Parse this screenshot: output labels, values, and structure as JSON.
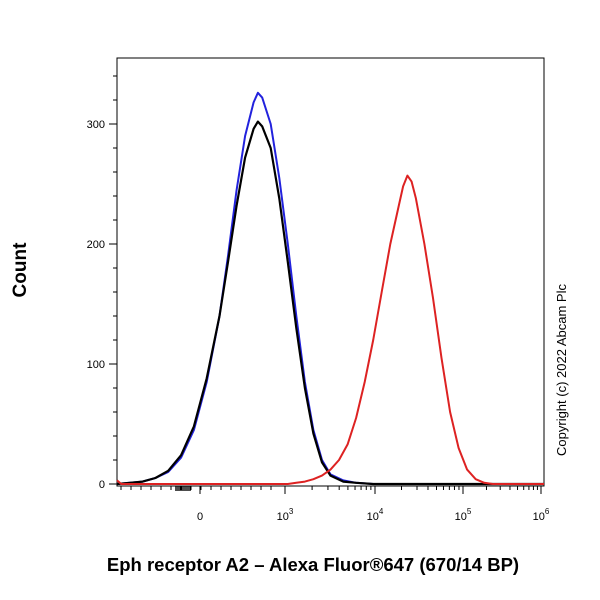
{
  "chart_data": {
    "type": "line",
    "title": "",
    "xlabel": "Eph receptor A2 – Alexa Fluor®647 (670/14 BP)",
    "ylabel": "Count",
    "ylim": [
      0,
      355
    ],
    "y_ticks": [
      {
        "value": 0,
        "label": "0"
      },
      {
        "value": 100,
        "label": "100"
      },
      {
        "value": 200,
        "label": "200"
      },
      {
        "value": 300,
        "label": "300"
      }
    ],
    "x_scale": "biexponential",
    "x_ticks": [
      {
        "base": "0",
        "exp": ""
      },
      {
        "base": "10",
        "exp": "3"
      },
      {
        "base": "10",
        "exp": "4"
      },
      {
        "base": "10",
        "exp": "5"
      },
      {
        "base": "10",
        "exp": "6"
      }
    ],
    "grid": false,
    "legend": "none",
    "series": [
      {
        "color": "#2222dd",
        "peak": {
          "x": "~100",
          "y": 325
        },
        "points": [
          [
            0.0,
            0
          ],
          [
            0.03,
            1
          ],
          [
            0.06,
            2
          ],
          [
            0.09,
            5
          ],
          [
            0.12,
            10
          ],
          [
            0.15,
            22
          ],
          [
            0.18,
            45
          ],
          [
            0.21,
            85
          ],
          [
            0.24,
            140
          ],
          [
            0.26,
            190
          ],
          [
            0.28,
            245
          ],
          [
            0.3,
            290
          ],
          [
            0.32,
            318
          ],
          [
            0.33,
            326
          ],
          [
            0.34,
            322
          ],
          [
            0.36,
            300
          ],
          [
            0.38,
            255
          ],
          [
            0.4,
            200
          ],
          [
            0.42,
            140
          ],
          [
            0.44,
            85
          ],
          [
            0.46,
            45
          ],
          [
            0.48,
            20
          ],
          [
            0.5,
            8
          ],
          [
            0.53,
            3
          ],
          [
            0.56,
            1
          ],
          [
            0.6,
            0
          ],
          [
            1.0,
            0
          ]
        ]
      },
      {
        "color": "#000000",
        "peak": {
          "x": "~100",
          "y": 302
        },
        "points": [
          [
            0.0,
            0
          ],
          [
            0.03,
            1
          ],
          [
            0.06,
            2
          ],
          [
            0.09,
            5
          ],
          [
            0.12,
            11
          ],
          [
            0.15,
            24
          ],
          [
            0.18,
            48
          ],
          [
            0.21,
            88
          ],
          [
            0.24,
            140
          ],
          [
            0.26,
            185
          ],
          [
            0.28,
            232
          ],
          [
            0.3,
            272
          ],
          [
            0.32,
            296
          ],
          [
            0.33,
            302
          ],
          [
            0.34,
            298
          ],
          [
            0.36,
            280
          ],
          [
            0.38,
            238
          ],
          [
            0.4,
            185
          ],
          [
            0.42,
            130
          ],
          [
            0.44,
            80
          ],
          [
            0.46,
            42
          ],
          [
            0.48,
            18
          ],
          [
            0.5,
            7
          ],
          [
            0.53,
            2
          ],
          [
            0.56,
            1
          ],
          [
            0.6,
            0
          ],
          [
            1.0,
            0
          ]
        ]
      },
      {
        "color": "#dd2222",
        "peak": {
          "x": "~5000",
          "y": 257
        },
        "points": [
          [
            0.0,
            3
          ],
          [
            0.01,
            0
          ],
          [
            0.4,
            0
          ],
          [
            0.42,
            1
          ],
          [
            0.44,
            2
          ],
          [
            0.46,
            4
          ],
          [
            0.48,
            7
          ],
          [
            0.5,
            12
          ],
          [
            0.52,
            20
          ],
          [
            0.54,
            33
          ],
          [
            0.56,
            55
          ],
          [
            0.58,
            85
          ],
          [
            0.6,
            120
          ],
          [
            0.62,
            160
          ],
          [
            0.64,
            200
          ],
          [
            0.66,
            232
          ],
          [
            0.67,
            248
          ],
          [
            0.68,
            257
          ],
          [
            0.69,
            252
          ],
          [
            0.7,
            238
          ],
          [
            0.72,
            200
          ],
          [
            0.74,
            155
          ],
          [
            0.76,
            105
          ],
          [
            0.78,
            60
          ],
          [
            0.8,
            30
          ],
          [
            0.82,
            12
          ],
          [
            0.84,
            4
          ],
          [
            0.86,
            1
          ],
          [
            0.88,
            0
          ],
          [
            1.0,
            0
          ]
        ]
      }
    ]
  },
  "copyright": "Copyright (c) 2022 Abcam Plc"
}
